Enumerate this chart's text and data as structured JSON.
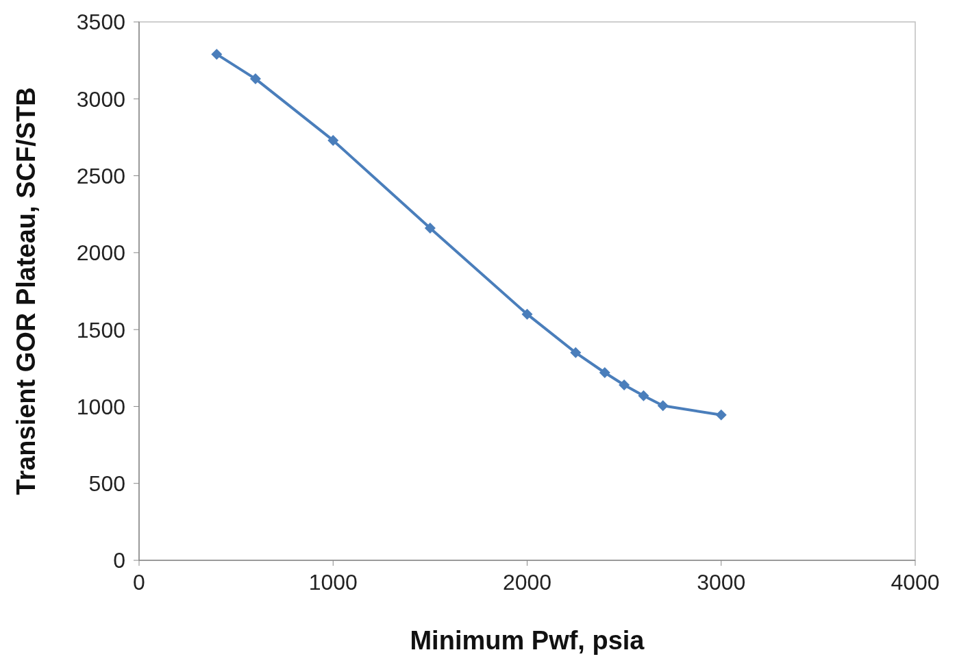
{
  "chart_data": {
    "type": "line",
    "xlabel": "Minimum Pwf, psia",
    "ylabel": "Transient GOR Plateau, SCF/STB",
    "x": [
      400,
      600,
      1000,
      1500,
      2000,
      2250,
      2400,
      2500,
      2600,
      2700,
      3000
    ],
    "series": [
      {
        "color": "#4a7ebb",
        "values": [
          3290,
          3130,
          2730,
          2160,
          1600,
          1350,
          1220,
          1140,
          1070,
          1005,
          945
        ]
      }
    ],
    "xlim": [
      0,
      4000
    ],
    "xticks": [
      0,
      1000,
      2000,
      3000,
      4000
    ],
    "ylim": [
      0,
      3500
    ],
    "yticks": [
      0,
      500,
      1000,
      1500,
      2000,
      2500,
      3000,
      3500
    ],
    "marker": "diamond",
    "line_style": "solid"
  }
}
